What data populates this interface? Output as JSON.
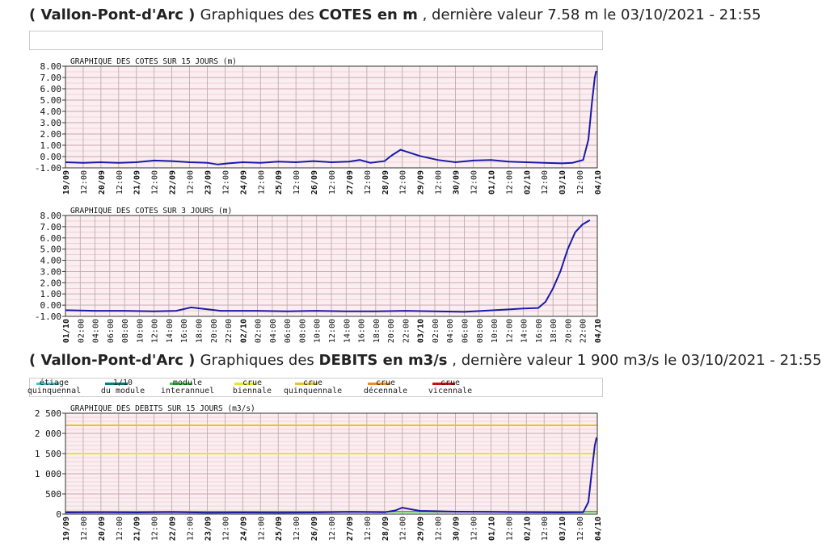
{
  "header1": {
    "open": "( Vallon-Pont-d'Arc ) ",
    "pre": "Graphiques des ",
    "bold": "COTES en m",
    "post": " , dernière valeur 7.58 m le 03/10/2021 - 21:55"
  },
  "header2": {
    "open": "( Vallon-Pont-d'Arc ) ",
    "pre": "Graphiques des ",
    "bold": "DEBITS en m3/s",
    "post": " , dernière valeur 1 900 m3/s le 03/10/2021 - 21:55"
  },
  "legend": [
    {
      "l1": "étiage",
      "l2": "quinquennal",
      "color": "#33cccc"
    },
    {
      "l1": "1/10",
      "l2": "du module",
      "color": "#008080"
    },
    {
      "l1": "module",
      "l2": "interannuel",
      "color": "#33cc33"
    },
    {
      "l1": "crue",
      "l2": "biennale",
      "color": "#e6e62e"
    },
    {
      "l1": "crue",
      "l2": "quinquennale",
      "color": "#e6c22e"
    },
    {
      "l1": "crue",
      "l2": "décennale",
      "color": "#f08c1e"
    },
    {
      "l1": "crue",
      "l2": "vicennale",
      "color": "#cc1010"
    }
  ],
  "chart_data": [
    {
      "type": "line",
      "title": "GRAPHIQUE DES COTES SUR 15 JOURS (m)",
      "ylim": [
        -1,
        8
      ],
      "yticks": [
        "8.00",
        "7.00",
        "6.00",
        "5.00",
        "4.00",
        "3.00",
        "2.00",
        "1.00",
        "0.00",
        "-1.00"
      ],
      "xticks": [
        "19/09",
        "12:00",
        "20/09",
        "12:00",
        "21/09",
        "12:00",
        "22/09",
        "12:00",
        "23/09",
        "12:00",
        "24/09",
        "12:00",
        "25/09",
        "12:00",
        "26/09",
        "12:00",
        "27/09",
        "12:00",
        "28/09",
        "12:00",
        "29/09",
        "12:00",
        "30/09",
        "12:00",
        "01/10",
        "12:00",
        "02/10",
        "12:00",
        "03/10",
        "12:00",
        "04/10"
      ],
      "xrange_days": [
        0,
        15
      ],
      "grid": true,
      "series": [
        {
          "color": "#1a1aa8",
          "points": [
            [
              0,
              -0.5
            ],
            [
              0.5,
              -0.55
            ],
            [
              1,
              -0.5
            ],
            [
              1.5,
              -0.55
            ],
            [
              2,
              -0.5
            ],
            [
              2.5,
              -0.35
            ],
            [
              3,
              -0.4
            ],
            [
              3.5,
              -0.5
            ],
            [
              4,
              -0.55
            ],
            [
              4.3,
              -0.7
            ],
            [
              4.6,
              -0.6
            ],
            [
              5,
              -0.5
            ],
            [
              5.5,
              -0.55
            ],
            [
              6,
              -0.45
            ],
            [
              6.5,
              -0.5
            ],
            [
              7,
              -0.4
            ],
            [
              7.5,
              -0.5
            ],
            [
              8,
              -0.45
            ],
            [
              8.3,
              -0.3
            ],
            [
              8.6,
              -0.55
            ],
            [
              9,
              -0.4
            ],
            [
              9.2,
              0.1
            ],
            [
              9.45,
              0.6
            ],
            [
              9.7,
              0.35
            ],
            [
              10,
              0.05
            ],
            [
              10.5,
              -0.3
            ],
            [
              11,
              -0.5
            ],
            [
              11.5,
              -0.35
            ],
            [
              12,
              -0.3
            ],
            [
              12.5,
              -0.45
            ],
            [
              13,
              -0.5
            ],
            [
              13.5,
              -0.55
            ],
            [
              14,
              -0.6
            ],
            [
              14.3,
              -0.55
            ],
            [
              14.6,
              -0.3
            ],
            [
              14.75,
              1.5
            ],
            [
              14.85,
              4.8
            ],
            [
              14.93,
              7.0
            ],
            [
              14.97,
              7.58
            ]
          ]
        }
      ]
    },
    {
      "type": "line",
      "title": "GRAPHIQUE DES COTES SUR 3 JOURS (m)",
      "ylim": [
        -1,
        8
      ],
      "yticks": [
        "8.00",
        "7.00",
        "6.00",
        "5.00",
        "4.00",
        "3.00",
        "2.00",
        "1.00",
        "0.00",
        "-1.00"
      ],
      "xticks": [
        "01/10",
        "02:00",
        "04:00",
        "06:00",
        "08:00",
        "10:00",
        "12:00",
        "14:00",
        "16:00",
        "18:00",
        "20:00",
        "22:00",
        "02/10",
        "02:00",
        "04:00",
        "06:00",
        "08:00",
        "10:00",
        "12:00",
        "14:00",
        "16:00",
        "18:00",
        "20:00",
        "22:00",
        "03/10",
        "02:00",
        "04:00",
        "06:00",
        "08:00",
        "10:00",
        "12:00",
        "14:00",
        "16:00",
        "18:00",
        "20:00",
        "22:00",
        "04/10"
      ],
      "xrange_hours": [
        0,
        72
      ],
      "grid": true,
      "series": [
        {
          "color": "#1a1aa8",
          "points": [
            [
              0,
              -0.45
            ],
            [
              4,
              -0.5
            ],
            [
              8,
              -0.5
            ],
            [
              12,
              -0.55
            ],
            [
              15,
              -0.5
            ],
            [
              17,
              -0.2
            ],
            [
              19,
              -0.35
            ],
            [
              21,
              -0.5
            ],
            [
              26,
              -0.5
            ],
            [
              30,
              -0.55
            ],
            [
              34,
              -0.5
            ],
            [
              38,
              -0.55
            ],
            [
              42,
              -0.55
            ],
            [
              46,
              -0.5
            ],
            [
              50,
              -0.55
            ],
            [
              54,
              -0.6
            ],
            [
              58,
              -0.45
            ],
            [
              62,
              -0.3
            ],
            [
              64,
              -0.25
            ],
            [
              65,
              0.3
            ],
            [
              66,
              1.5
            ],
            [
              67,
              3.0
            ],
            [
              68,
              5.0
            ],
            [
              69,
              6.5
            ],
            [
              70,
              7.2
            ],
            [
              71,
              7.58
            ]
          ]
        }
      ]
    },
    {
      "type": "line",
      "title": "GRAPHIQUE DES DEBITS SUR 15 JOURS (m3/s)",
      "ylim": [
        0,
        2500
      ],
      "yticks": [
        "2 500",
        "2 000",
        "1 500",
        "1 000",
        "500",
        "0"
      ],
      "xticks": [
        "19/09",
        "12:00",
        "20/09",
        "12:00",
        "21/09",
        "12:00",
        "22/09",
        "12:00",
        "23/09",
        "12:00",
        "24/09",
        "12:00",
        "25/09",
        "12:00",
        "26/09",
        "12:00",
        "27/09",
        "12:00",
        "28/09",
        "12:00",
        "29/09",
        "12:00",
        "30/09",
        "12:00",
        "01/10",
        "12:00",
        "02/10",
        "12:00",
        "03/10",
        "12:00",
        "04/10"
      ],
      "xrange_days": [
        0,
        15
      ],
      "grid": true,
      "reference_lines": [
        {
          "name": "crue quinquennale",
          "value": 2200,
          "color": "#e6c22e"
        },
        {
          "name": "crue biennale",
          "value": 1500,
          "color": "#e6e62e"
        },
        {
          "name": "module interannuel",
          "value": 60,
          "color": "#33cc33"
        }
      ],
      "series": [
        {
          "color": "#1a1aa8",
          "points": [
            [
              0,
              40
            ],
            [
              1,
              45
            ],
            [
              2,
              40
            ],
            [
              3,
              50
            ],
            [
              4,
              35
            ],
            [
              5,
              40
            ],
            [
              6,
              35
            ],
            [
              7,
              40
            ],
            [
              8,
              55
            ],
            [
              9,
              45
            ],
            [
              9.3,
              90
            ],
            [
              9.5,
              160
            ],
            [
              9.8,
              110
            ],
            [
              10,
              80
            ],
            [
              11,
              60
            ],
            [
              12,
              55
            ],
            [
              13,
              45
            ],
            [
              14,
              40
            ],
            [
              14.6,
              45
            ],
            [
              14.75,
              300
            ],
            [
              14.85,
              1100
            ],
            [
              14.93,
              1700
            ],
            [
              14.98,
              1900
            ]
          ]
        }
      ]
    }
  ]
}
